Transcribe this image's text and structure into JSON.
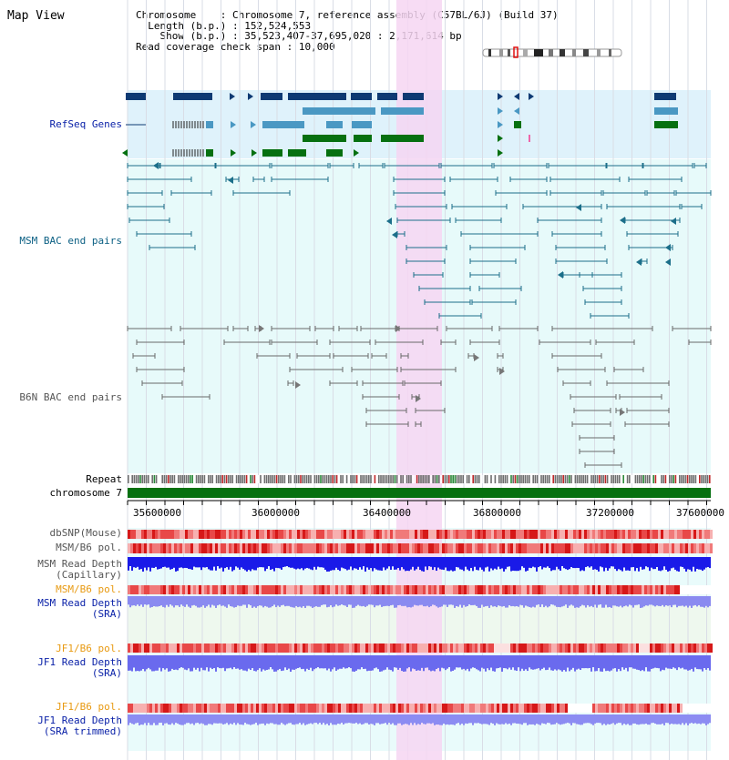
{
  "title": "Map View",
  "info": {
    "chromosome_label": "Chromosome",
    "chromosome_value": "Chromosome 7, reference assembly (C57BL/6J) (Build 37)",
    "length_label": "Length (b.p.)",
    "length_value": "152,524,553",
    "show_label": "Show (b.p.)",
    "show_value": "35,523,407-37,695,020 : 2,171,614 bp",
    "coverage_label": "Read coverage check span",
    "coverage_value": "10,000"
  },
  "tracks": {
    "refseq": "RefSeq Genes",
    "msm_bac": "MSM BAC end pairs",
    "b6n_bac": "B6N BAC end pairs",
    "repeat": "Repeat",
    "chromosome": "chromosome 7",
    "dbsnp": "dbSNP(Mouse)",
    "msm_b6_pol": "MSM/B6 pol.",
    "msm_read_depth_cap_1": "MSM Read Depth",
    "msm_read_depth_cap_2": "(Capillary)",
    "msm_b6_pol_sra": "MSM/B6 pol.",
    "msm_read_depth_sra_1": "MSM Read Depth",
    "msm_read_depth_sra_2": "(SRA)",
    "jf1_b6_pol": "JF1/B6 pol.",
    "jf1_read_depth_1": "JF1 Read Depth",
    "jf1_read_depth_2": "(SRA)",
    "jf1_b6_pol_trim": "JF1/B6 pol.",
    "jf1_read_depth_trim_1": "JF1 Read Depth",
    "jf1_read_depth_trim_2": "(SRA trimmed)"
  },
  "axis": {
    "ticks": [
      "35600000",
      "36000000",
      "36400000",
      "36800000",
      "37200000",
      "37600000"
    ]
  },
  "colors": {
    "refseq_bg": "#dff2fb",
    "bac_bg": "#e7fafa",
    "highlight": "#f6d6f2",
    "gene_dark": "#0e3a73",
    "gene_mid": "#4a98c3",
    "gene_green": "#067010",
    "msm_line": "#1c6f8a",
    "b6n_line": "#6a6a6a",
    "label_blue": "#0a21a8",
    "label_teal": "#0c6084",
    "label_orange": "#e89a12",
    "label_gray": "#555555"
  }
}
